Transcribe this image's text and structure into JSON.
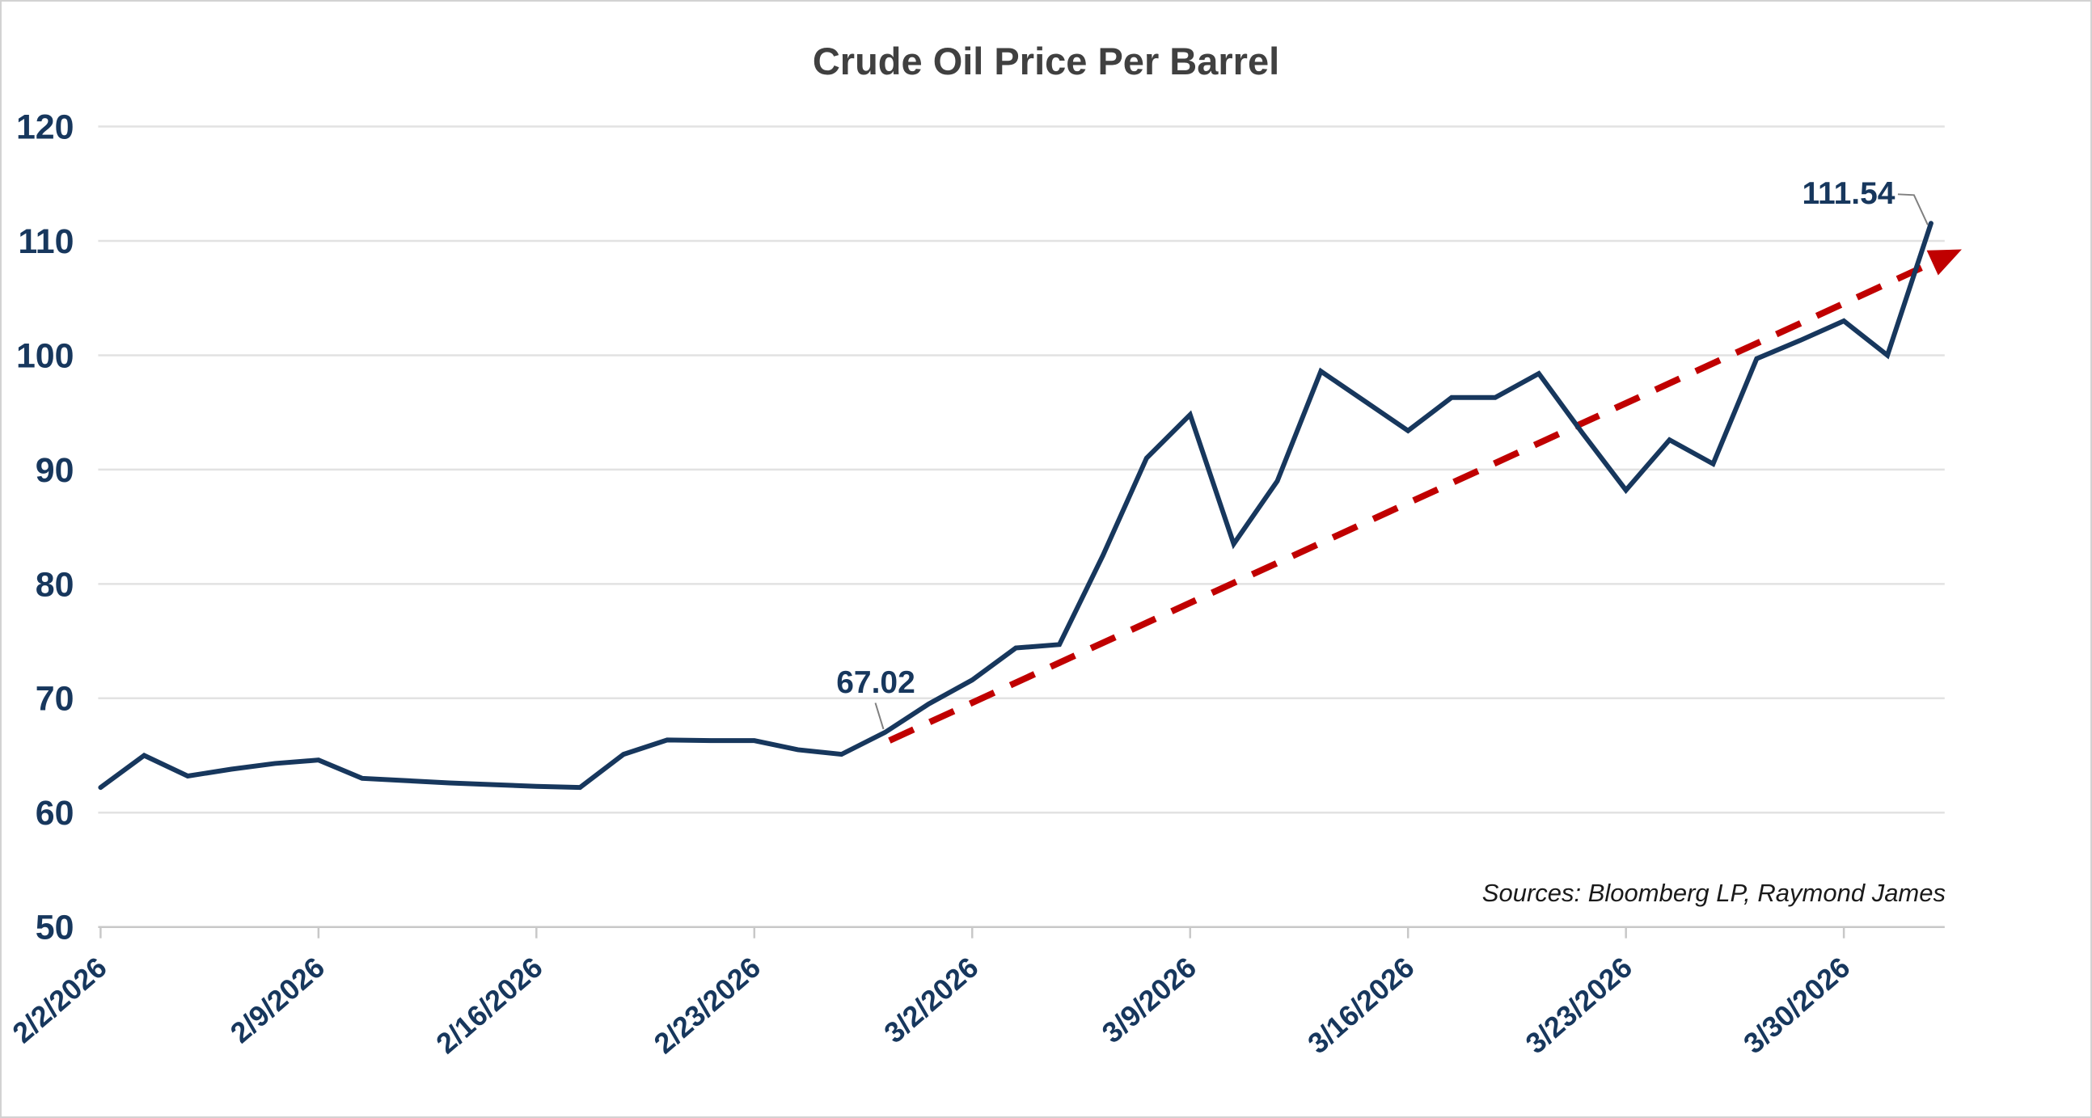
{
  "chart_data": {
    "type": "line",
    "title": "Crude Oil Price Per Barrel",
    "x": [
      "2/2/2026",
      "2/3/2026",
      "2/4/2026",
      "2/5/2026",
      "2/6/2026",
      "2/9/2026",
      "2/10/2026",
      "2/11/2026",
      "2/12/2026",
      "2/13/2026",
      "2/16/2026",
      "2/17/2026",
      "2/18/2026",
      "2/19/2026",
      "2/20/2026",
      "2/23/2026",
      "2/24/2026",
      "2/25/2026",
      "2/26/2026",
      "2/27/2026",
      "3/2/2026",
      "3/3/2026",
      "3/4/2026",
      "3/5/2026",
      "3/6/2026",
      "3/9/2026",
      "3/10/2026",
      "3/11/2026",
      "3/12/2026",
      "3/13/2026",
      "3/16/2026",
      "3/17/2026",
      "3/18/2026",
      "3/19/2026",
      "3/20/2026",
      "3/23/2026",
      "3/24/2026",
      "3/25/2026",
      "3/26/2026",
      "3/27/2026",
      "3/30/2026",
      "3/31/2026",
      "4/1/2026"
    ],
    "series": [
      {
        "name": "Crude Oil Price",
        "values": [
          62.2,
          65.0,
          63.2,
          63.8,
          64.3,
          64.6,
          63.0,
          62.8,
          62.6,
          62.45,
          62.3,
          62.2,
          65.1,
          66.35,
          66.3,
          66.3,
          65.5,
          65.1,
          67.02,
          69.5,
          71.6,
          74.4,
          74.7,
          82.5,
          91.0,
          94.8,
          83.5,
          89.0,
          98.6,
          96.0,
          93.4,
          96.3,
          96.3,
          98.4,
          93.2,
          88.2,
          92.6,
          90.5,
          99.7,
          101.3,
          103.0,
          100.0,
          111.54
        ]
      }
    ],
    "xlabel": "",
    "ylabel": "",
    "ylim": [
      50,
      120
    ],
    "y_ticks": [
      50,
      60,
      70,
      80,
      90,
      100,
      110,
      120
    ],
    "x_tick_labels": [
      "2/2/2026",
      "2/9/2026",
      "2/16/2026",
      "2/23/2026",
      "3/2/2026",
      "3/9/2026",
      "3/16/2026",
      "3/23/2026",
      "3/30/2026"
    ],
    "x_tick_indices": [
      0,
      5,
      10,
      15,
      20,
      25,
      30,
      35,
      40
    ],
    "grid": true,
    "legend": "none",
    "annotations": [
      {
        "label": "67.02",
        "date": "2/26/2026",
        "value": 67.02,
        "index": 18
      },
      {
        "label": "111.54",
        "date": "4/1/2026",
        "value": 111.54,
        "index": 42
      }
    ],
    "trendline": {
      "style": "dashed",
      "arrow_end": true,
      "start_index": 18.1,
      "start_value": 66.3,
      "end_index": 42.1,
      "end_value": 108.2
    },
    "source_note": "Sources: Bloomberg LP, Raymond James",
    "colors": {
      "line": "#17375D",
      "trend": "#C00000",
      "gridline": "#E2E2E2",
      "axis": "#C8C8C8",
      "tick_label": "#17375D",
      "title": "#404040",
      "source": "#1A1A1A",
      "leader": "#808080",
      "background": "#FFFFFF",
      "border": "#D2D2D2"
    }
  }
}
